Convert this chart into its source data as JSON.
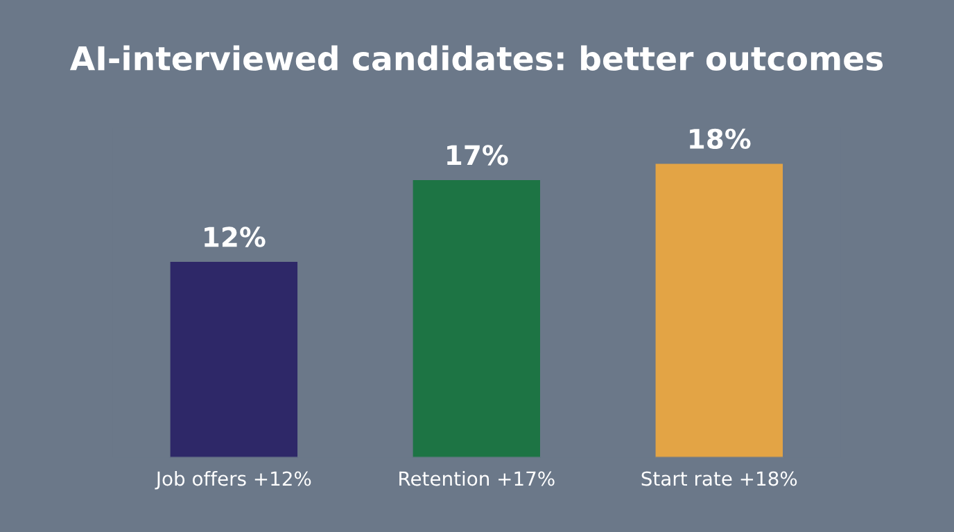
{
  "chart_data": {
    "type": "bar",
    "title": "AI-interviewed candidates: better outcomes",
    "categories": [
      "Job offers +12%",
      "Retention +17%",
      "Start rate +18%"
    ],
    "colors": [
      "#2e2868",
      "#1d7444",
      "#e3a445"
    ],
    "values": [
      12,
      17,
      18
    ],
    "value_labels": [
      "12%",
      "17%",
      "18%"
    ]
  }
}
